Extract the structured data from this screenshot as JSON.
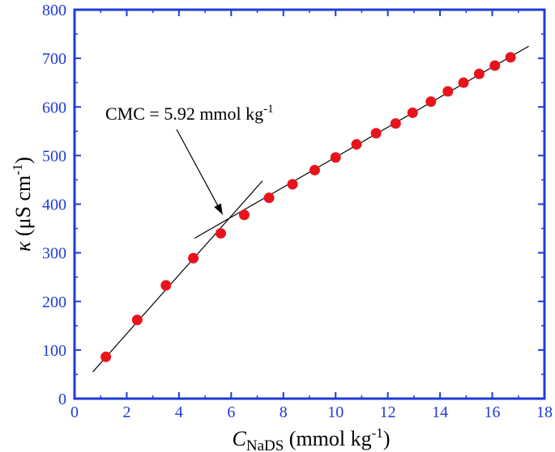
{
  "chart_data": {
    "type": "scatter",
    "x_axis": {
      "range": [
        0,
        18
      ],
      "ticks": [
        0,
        2,
        4,
        6,
        8,
        10,
        12,
        14,
        16,
        18
      ],
      "tick_labels": [
        "0",
        "2",
        "4",
        "6",
        "8",
        "10",
        "12",
        "14",
        "16",
        "18"
      ],
      "label": {
        "symbol": "C",
        "subscript": "NaDS",
        "unit_prefix": " (mmol kg",
        "superscript": "-1",
        "unit_suffix": ")"
      }
    },
    "y_axis": {
      "range": [
        0,
        800
      ],
      "ticks": [
        0,
        100,
        200,
        300,
        400,
        500,
        600,
        700,
        800
      ],
      "tick_labels": [
        "0",
        "100",
        "200",
        "300",
        "400",
        "500",
        "600",
        "700",
        "800"
      ],
      "label": {
        "symbol": "κ",
        "unit_prefix": " (μS cm",
        "superscript": "-1",
        "unit_suffix": ")"
      }
    },
    "grid": false,
    "colors": {
      "axis": "#1f3bd6",
      "points": "#e8141c",
      "lines": "#000000"
    },
    "series": [
      {
        "points": [
          [
            1.2,
            86
          ],
          [
            2.4,
            162
          ],
          [
            3.5,
            233
          ],
          [
            4.55,
            289
          ],
          [
            5.6,
            340
          ],
          [
            6.5,
            378
          ],
          [
            7.45,
            413
          ],
          [
            8.35,
            441
          ],
          [
            9.2,
            470
          ],
          [
            10.0,
            496
          ],
          [
            10.8,
            523
          ],
          [
            11.55,
            546
          ],
          [
            12.3,
            566
          ],
          [
            12.95,
            588
          ],
          [
            13.65,
            611
          ],
          [
            14.3,
            632
          ],
          [
            14.9,
            650
          ],
          [
            15.5,
            668
          ],
          [
            16.1,
            685
          ],
          [
            16.7,
            702
          ]
        ]
      }
    ],
    "fit_lines": [
      {
        "from": [
          0.7,
          55
        ],
        "to": [
          7.2,
          448
        ]
      },
      {
        "from": [
          4.6,
          330
        ],
        "to": [
          17.4,
          725
        ]
      }
    ],
    "annotation": {
      "text_prefix": "CMC = 5.92 mmol kg",
      "superscript": "-1",
      "arrow_to": [
        5.92,
        372
      ]
    }
  }
}
